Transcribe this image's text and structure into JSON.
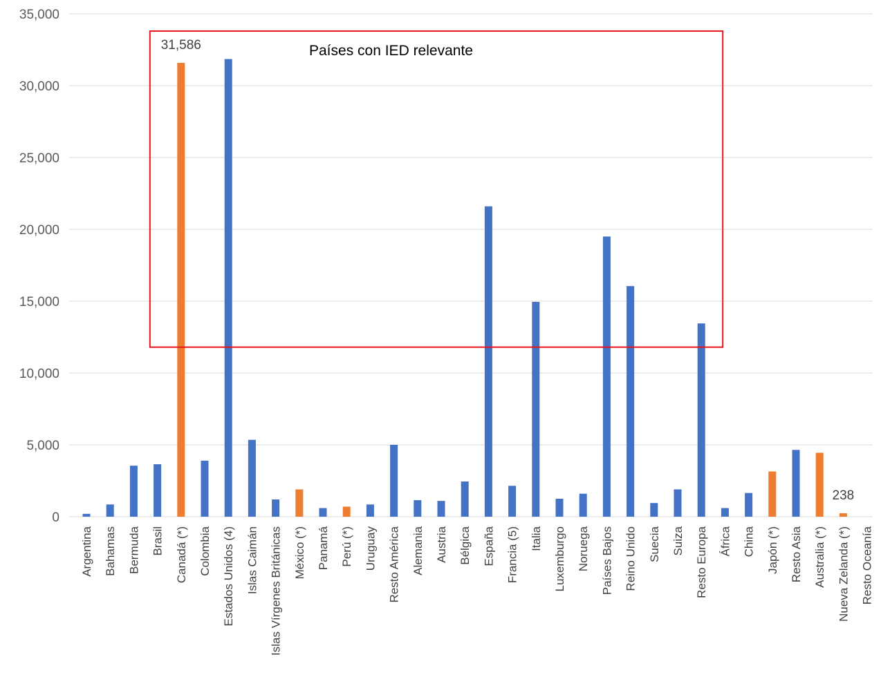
{
  "chart_data": {
    "type": "bar",
    "title": "",
    "xlabel": "",
    "ylabel": "",
    "ylim": [
      0,
      35000
    ],
    "yticks": [
      0,
      5000,
      10000,
      15000,
      20000,
      25000,
      30000,
      35000
    ],
    "ytick_labels": [
      "0",
      "5,000",
      "10,000",
      "15,000",
      "20,000",
      "25,000",
      "30,000",
      "35,000"
    ],
    "grid": true,
    "categories": [
      "Argentina",
      "Bahamas",
      "Bermuda",
      "Brasil",
      "Canadá (*)",
      "Colombia",
      "Estados Unidos (4)",
      "Islas Caimán",
      "Islas Vírgenes Británicas",
      "México (*)",
      "Panamá",
      "Perú (*)",
      "Uruguay",
      "Resto América",
      "Alemania",
      "Austria",
      "Bélgica",
      "España",
      "Francia (5)",
      "Italia",
      "Luxemburgo",
      "Noruega",
      "Países Bajos",
      "Reino Unido",
      "Suecia",
      "Suiza",
      "Resto Europa",
      "África",
      "China",
      "Japón (*)",
      "Resto Asia",
      "Australia (*)",
      "Nueva Zelanda (*)",
      "Resto Oceanía"
    ],
    "values": [
      200,
      850,
      3550,
      3650,
      31586,
      3900,
      31850,
      5350,
      1200,
      1900,
      600,
      700,
      850,
      5000,
      1150,
      1100,
      2450,
      21600,
      2150,
      14950,
      1250,
      1600,
      19500,
      16050,
      950,
      1900,
      13450,
      600,
      1650,
      3150,
      4650,
      4450,
      238,
      0
    ],
    "highlighted": [
      false,
      false,
      false,
      false,
      true,
      false,
      false,
      false,
      false,
      true,
      false,
      true,
      false,
      false,
      false,
      false,
      false,
      false,
      false,
      false,
      false,
      false,
      false,
      false,
      false,
      false,
      false,
      false,
      false,
      true,
      false,
      true,
      true,
      false
    ],
    "data_labels": [
      {
        "category": "Canadá (*)",
        "text": "31,586"
      },
      {
        "category": "Nueva Zelanda (*)",
        "text": "238"
      }
    ],
    "annotation": {
      "text": "Países con IED relevante",
      "box_color": "#e8141a",
      "range": {
        "category_from": "Canadá (*)",
        "category_to": "Resto Europa",
        "value_from": 11800,
        "value_to": 33800
      }
    },
    "colors": {
      "default": "#4472c4",
      "highlight": "#ed7d31",
      "grid": "#d9d9d9"
    }
  }
}
